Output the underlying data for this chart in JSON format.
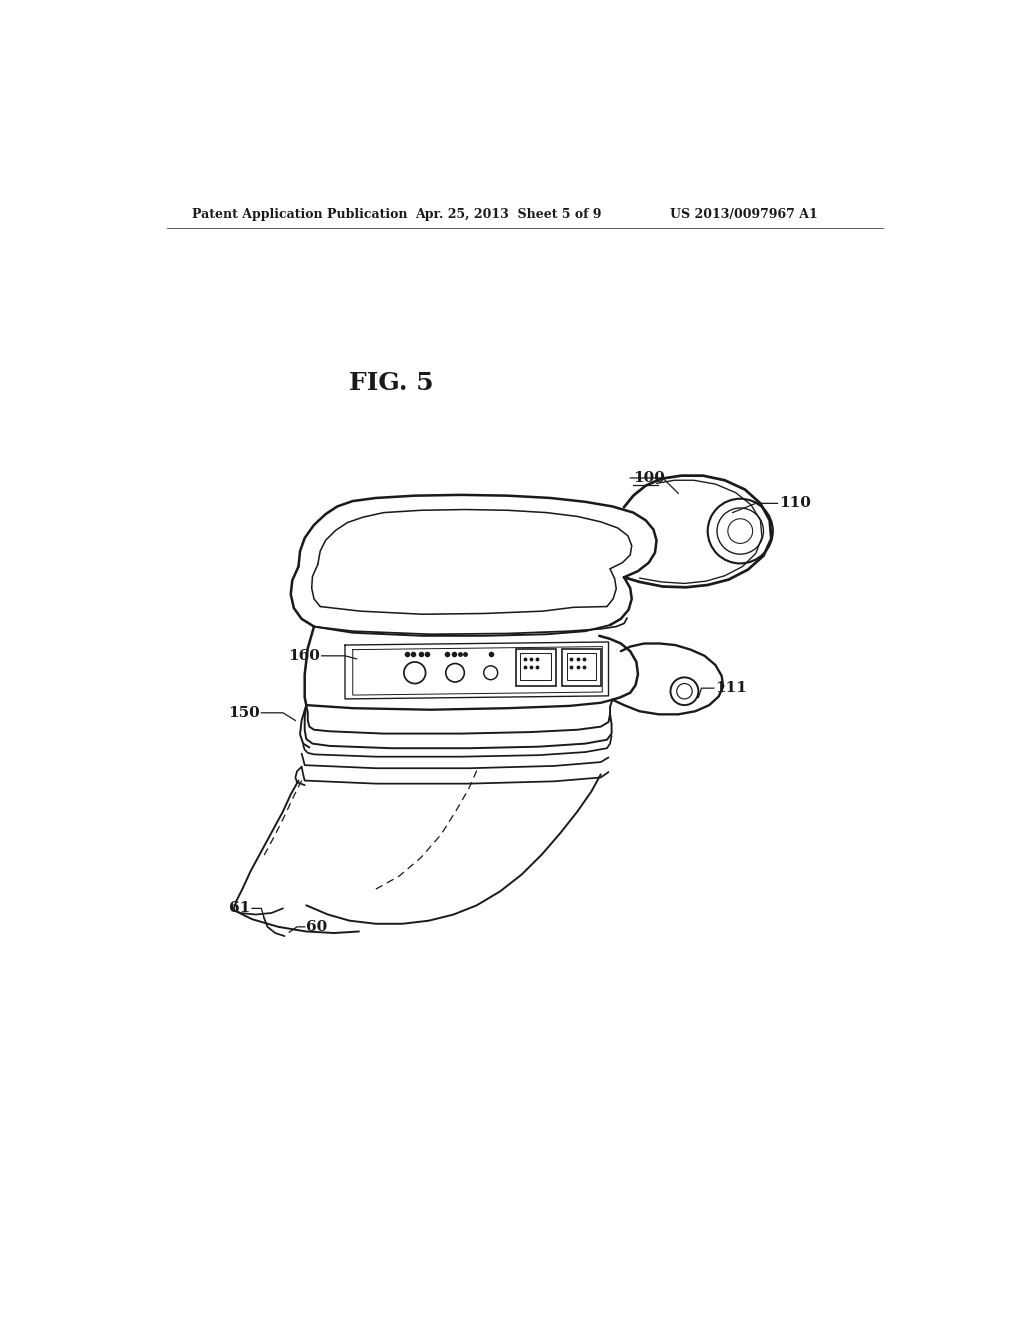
{
  "bg_color": "#ffffff",
  "line_color": "#1a1a1a",
  "fig_width": 10.24,
  "fig_height": 13.2,
  "header_left": "Patent Application Publication",
  "header_mid": "Apr. 25, 2013  Sheet 5 of 9",
  "header_right": "US 2013/0097967 A1",
  "fig_label": "FIG. 5"
}
